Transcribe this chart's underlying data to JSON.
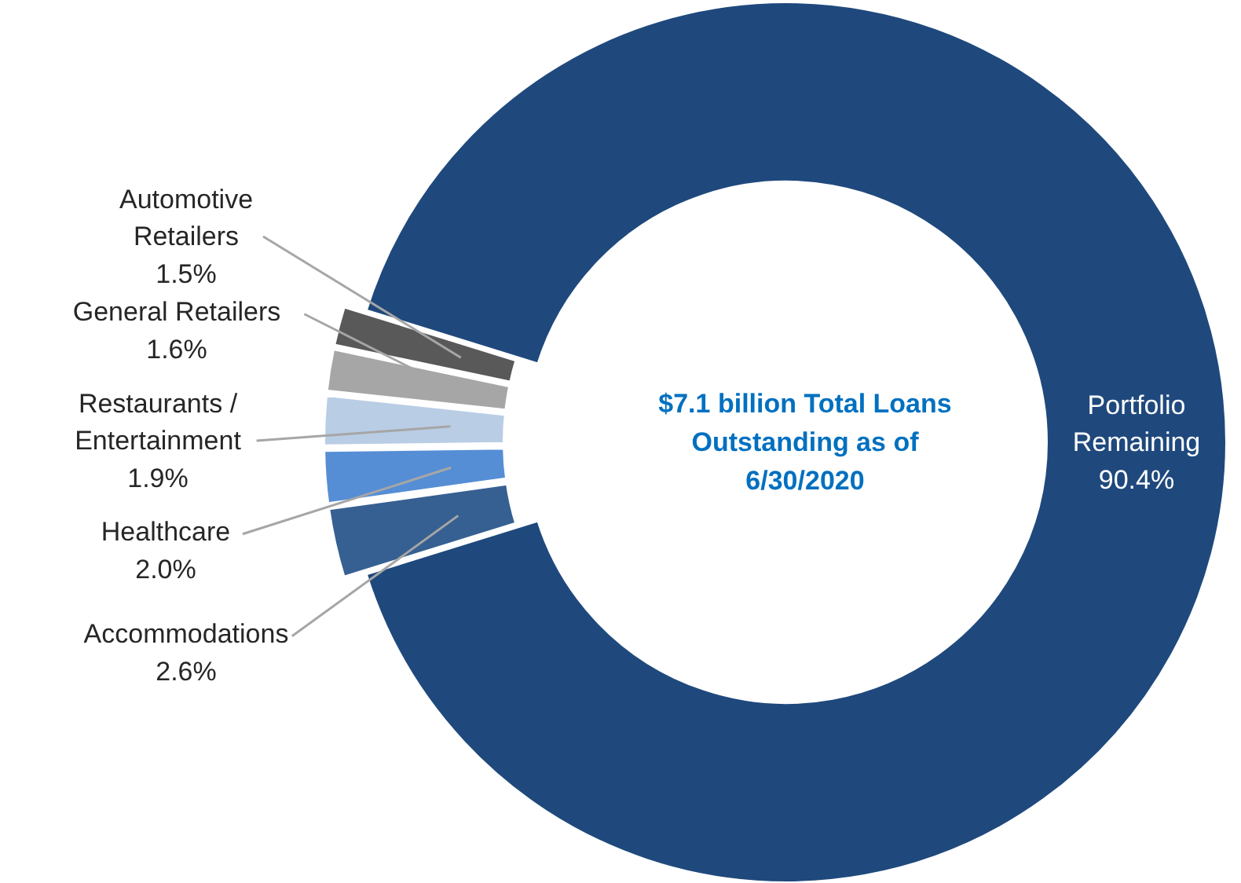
{
  "chart_data": {
    "type": "donut",
    "categories": [
      "Automotive Retailers",
      "General Retailers",
      "Restaurants / Entertainment",
      "Healthcare",
      "Accommodations",
      "Portfolio Remaining"
    ],
    "values": [
      1.5,
      1.6,
      1.9,
      2.0,
      2.6,
      90.4
    ],
    "value_labels": [
      "1.5%",
      "1.6%",
      "1.9%",
      "2.0%",
      "2.6%",
      "90.4%"
    ],
    "colors": [
      "#595959",
      "#a6a6a6",
      "#b9cde5",
      "#558ed5",
      "#376092",
      "#1f497d"
    ],
    "annotations": [
      "$7.1 billion Total Loans Outstanding as of 6/30/2020"
    ],
    "legend": false
  }
}
